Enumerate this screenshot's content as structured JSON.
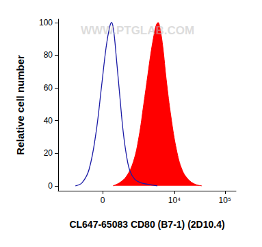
{
  "chart_data": {
    "type": "line",
    "xlabel": "CL647-65083 CD80 (B7-1) (2D10.4)",
    "ylabel": "Relative cell number",
    "annotations": [
      "WWW.PTGLAB.COM"
    ],
    "xlim": [
      -2660,
      165000
    ],
    "xticks": [
      0,
      {
        "value": 10000,
        "label": "10⁴"
      },
      {
        "value": 100000,
        "label": "10⁵"
      }
    ],
    "ylim": [
      -3,
      102
    ],
    "yticks": [
      0,
      20,
      40,
      60,
      80,
      100
    ],
    "grid": false,
    "series": [
      {
        "type": "line",
        "color": "#1a1aa6",
        "x": [
          -1000,
          -627,
          -352,
          -149,
          -26,
          69,
          149,
          203,
          263,
          352,
          479,
          627,
          800,
          1000,
          1340,
          1830,
          2640,
          4420
        ],
        "values": [
          0,
          2,
          10,
          32,
          60,
          85,
          97,
          100,
          95,
          78,
          55,
          33,
          18,
          9,
          4,
          2,
          1,
          0
        ]
      },
      {
        "type": "area",
        "color": "#ff0000",
        "x": [
          243,
          479,
          800,
          1237,
          1697,
          2203,
          2735,
          3146,
          3610,
          4133,
          4573,
          5055,
          5769,
          6798,
          8524,
          11014,
          14193,
          18842,
          25772,
          35192
        ],
        "values": [
          0,
          2,
          6,
          15,
          30,
          50,
          68,
          80,
          90,
          98,
          100,
          96,
          85,
          65,
          42,
          22,
          10,
          4,
          1,
          0
        ]
      }
    ]
  }
}
